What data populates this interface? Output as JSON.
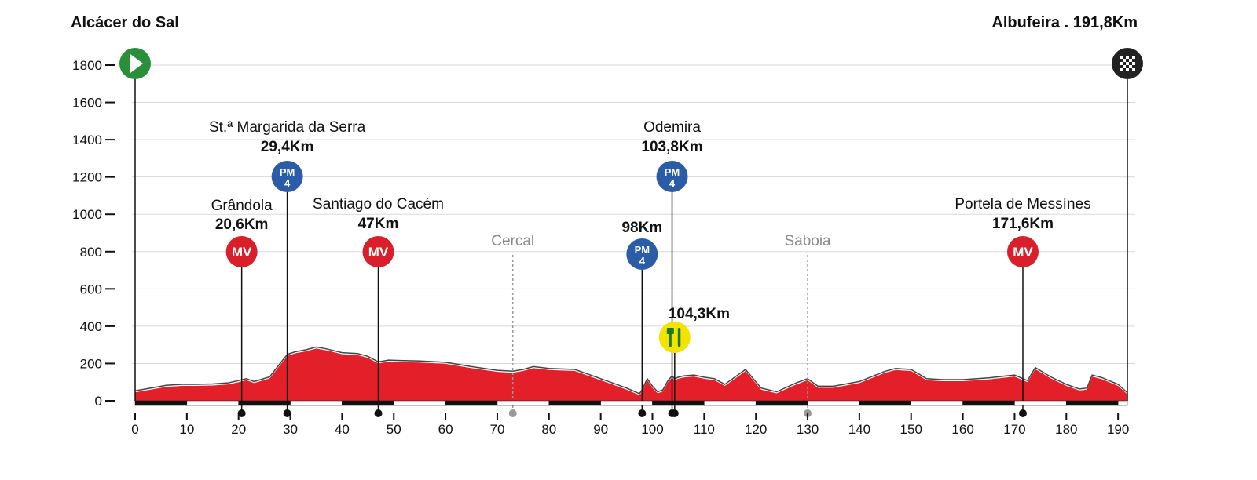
{
  "header": {
    "start": "Alcácer do Sal",
    "finish": "Albufeira . 191,8Km"
  },
  "colors": {
    "profile_fill": "#e3202a",
    "start_marker": "#2b8f3a",
    "finish_marker": "#222222",
    "mv_badge": "#d81f2a",
    "pm_badge": "#2a5ca8",
    "feed_zone": "#f4e300",
    "town_label": "#8a8a8a"
  },
  "chart_data": {
    "type": "area",
    "xlim": [
      0,
      191.8
    ],
    "ylim": [
      0,
      1900
    ],
    "xticks": [
      0,
      10,
      20,
      30,
      40,
      50,
      60,
      70,
      80,
      90,
      100,
      110,
      120,
      130,
      140,
      150,
      160,
      170,
      180,
      190
    ],
    "yticks": [
      0,
      200,
      400,
      600,
      800,
      1000,
      1200,
      1400,
      1600,
      1800
    ],
    "grid": "horizontal",
    "profile": {
      "x": [
        0,
        3,
        6,
        9,
        12,
        15,
        18,
        20,
        21.5,
        23,
        26,
        29.4,
        31,
        33,
        35,
        37,
        40,
        43,
        45,
        47,
        49,
        52,
        55,
        60,
        65,
        70,
        73,
        75,
        77,
        80,
        85,
        90,
        95,
        97.5,
        98,
        99,
        100,
        101,
        102,
        103,
        103.8,
        104.3,
        105,
        106,
        108,
        110,
        112,
        114,
        115,
        118,
        121,
        124,
        126,
        128,
        130,
        131,
        132,
        135,
        140,
        145,
        147,
        150,
        153,
        156,
        160,
        165,
        170,
        171.6,
        172.5,
        174,
        177,
        180,
        182.5,
        184,
        185,
        187,
        190,
        191.8
      ],
      "y": [
        45,
        60,
        75,
        80,
        80,
        82,
        88,
        100,
        110,
        95,
        120,
        240,
        255,
        265,
        280,
        270,
        250,
        245,
        230,
        200,
        210,
        207,
        205,
        198,
        175,
        155,
        150,
        160,
        175,
        165,
        160,
        110,
        60,
        30,
        50,
        110,
        70,
        40,
        50,
        100,
        125,
        110,
        118,
        125,
        130,
        118,
        110,
        80,
        100,
        160,
        60,
        40,
        65,
        90,
        110,
        90,
        70,
        70,
        95,
        150,
        165,
        160,
        110,
        105,
        105,
        115,
        130,
        110,
        100,
        170,
        120,
        80,
        55,
        60,
        130,
        115,
        80,
        35
      ]
    },
    "annotations": [
      {
        "type": "MV",
        "name": "Grândola",
        "km": 20.6,
        "km_label": "20,6Km"
      },
      {
        "type": "PM",
        "category": "4",
        "name": "St.ª Margarida da Serra",
        "km": 29.4,
        "km_label": "29,4Km"
      },
      {
        "type": "MV",
        "name": "Santiago do Cacém",
        "km": 47,
        "km_label": "47Km"
      },
      {
        "type": "PM",
        "category": "4",
        "name": "",
        "km": 98,
        "km_label": "98Km"
      },
      {
        "type": "PM",
        "category": "4",
        "name": "Odemira",
        "km": 103.8,
        "km_label": "103,8Km"
      },
      {
        "type": "FEED",
        "name": "",
        "km": 104.3,
        "km_label": "104,3Km"
      },
      {
        "type": "MV",
        "name": "Portela de Messínes",
        "km": 171.6,
        "km_label": "171,6Km"
      }
    ],
    "towns": [
      {
        "name": "Cercal",
        "km": 73
      },
      {
        "name": "Saboia",
        "km": 130
      }
    ]
  }
}
